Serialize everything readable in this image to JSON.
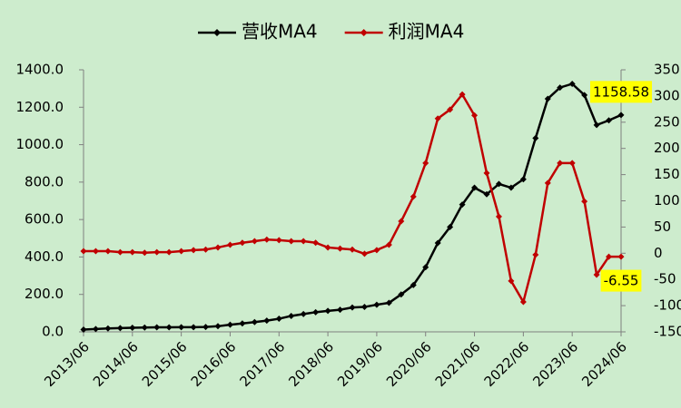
{
  "chart_data": {
    "type": "line",
    "categories": [
      "2013/06",
      null,
      null,
      null,
      "2014/06",
      null,
      null,
      null,
      "2015/06",
      null,
      null,
      null,
      "2016/06",
      null,
      null,
      null,
      "2017/06",
      null,
      null,
      null,
      "2018/06",
      null,
      null,
      null,
      "2019/06",
      null,
      null,
      null,
      "2020/06",
      null,
      null,
      null,
      "2021/06",
      null,
      null,
      null,
      "2022/06",
      null,
      null,
      null,
      "2023/06",
      null,
      null,
      null,
      "2024/06"
    ],
    "series": [
      {
        "name": "营收MA4",
        "color": "#000000",
        "values": [
          12,
          15,
          18,
          20,
          22,
          23,
          24,
          24,
          25,
          25,
          26,
          30,
          38,
          45,
          52,
          60,
          70,
          85,
          95,
          105,
          112,
          118,
          130,
          133,
          145,
          155,
          200,
          250,
          345,
          475,
          560,
          680,
          770,
          735,
          790,
          770,
          815,
          1035,
          1245,
          1305,
          1325,
          1265,
          1105,
          1130,
          1158.58
        ],
        "value_labels": [
          null,
          null,
          null,
          null,
          null,
          null,
          null,
          null,
          null,
          null,
          null,
          null,
          null,
          null,
          null,
          null,
          null,
          null,
          null,
          null,
          null,
          null,
          null,
          null,
          null,
          null,
          null,
          null,
          null,
          null,
          null,
          null,
          null,
          null,
          null,
          null,
          null,
          null,
          null,
          null,
          null,
          null,
          null,
          null,
          "1158.58"
        ]
      },
      {
        "name": "利润MA4",
        "color": "#c00000",
        "axis": "y2",
        "values": [
          4,
          4,
          4,
          2,
          2,
          1,
          2,
          2,
          4,
          6,
          7,
          11,
          16,
          20,
          23,
          26,
          25,
          23,
          23,
          20,
          11,
          9,
          7,
          -1,
          6,
          16,
          61,
          108,
          172,
          257,
          274,
          303,
          263,
          153,
          70,
          -53,
          -93,
          -3,
          134,
          172,
          172,
          99,
          -41,
          -6.55,
          -6.55
        ],
        "value_labels": [
          null,
          null,
          null,
          null,
          null,
          null,
          null,
          null,
          null,
          null,
          null,
          null,
          null,
          null,
          null,
          null,
          null,
          null,
          null,
          null,
          null,
          null,
          null,
          null,
          null,
          null,
          null,
          null,
          null,
          null,
          null,
          null,
          null,
          null,
          null,
          null,
          null,
          null,
          null,
          null,
          null,
          null,
          null,
          null,
          "-6.55"
        ]
      }
    ],
    "ylim": [
      0,
      1400
    ],
    "yticks": [
      {
        "value": 0,
        "label": "0.0"
      },
      {
        "value": 200,
        "label": "200.0"
      },
      {
        "value": 400,
        "label": "400.0"
      },
      {
        "value": 600,
        "label": "600.0"
      },
      {
        "value": 800,
        "label": "800.0"
      },
      {
        "value": 1000,
        "label": "1000.0"
      },
      {
        "value": 1200,
        "label": "1200.0"
      },
      {
        "value": 1400,
        "label": "1400.0"
      }
    ],
    "y2lim": [
      -150,
      350
    ],
    "y2ticks": [
      -150,
      -100,
      -50,
      0,
      50,
      100,
      150,
      200,
      250,
      300,
      350
    ],
    "grid": false,
    "legend": "top"
  }
}
